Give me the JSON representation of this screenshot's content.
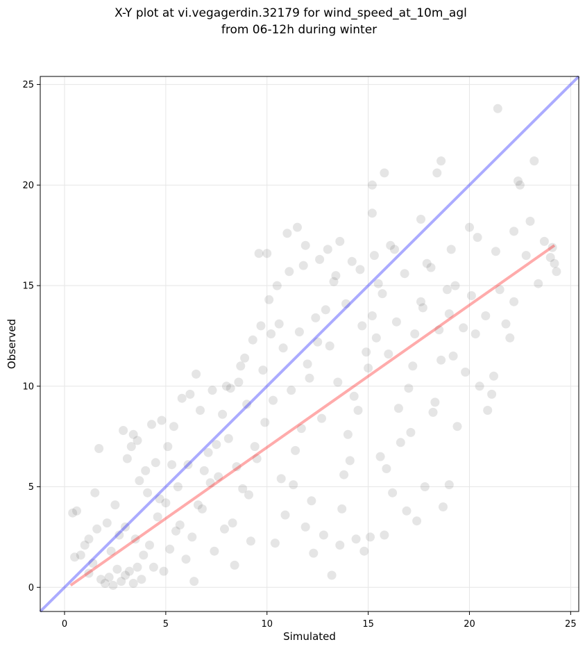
{
  "chart_data": {
    "type": "scatter",
    "title": "X-Y plot at vi.vegagerdin.32179 for wind_speed_at_10m_agl",
    "subtitle": "from 06-12h during winter",
    "xlabel": "Simulated",
    "ylabel": "Observed",
    "xlim": [
      -1.2,
      25.4
    ],
    "ylim": [
      -1.2,
      25.4
    ],
    "xticks": [
      0,
      5,
      10,
      15,
      20,
      25
    ],
    "yticks": [
      0,
      5,
      10,
      15,
      20,
      25
    ],
    "grid": true,
    "point_color": "#333333",
    "points": [
      [
        0.4,
        3.7
      ],
      [
        0.6,
        3.8
      ],
      [
        0.5,
        1.5
      ],
      [
        0.8,
        1.6
      ],
      [
        1.0,
        2.1
      ],
      [
        1.2,
        0.7
      ],
      [
        1.5,
        4.7
      ],
      [
        1.7,
        6.9
      ],
      [
        1.2,
        2.4
      ],
      [
        1.6,
        2.9
      ],
      [
        2.0,
        0.2
      ],
      [
        2.2,
        0.5
      ],
      [
        2.4,
        0.1
      ],
      [
        2.6,
        0.9
      ],
      [
        2.8,
        0.3
      ],
      [
        3.0,
        0.6
      ],
      [
        3.2,
        0.8
      ],
      [
        3.4,
        0.2
      ],
      [
        3.6,
        1.0
      ],
      [
        3.8,
        0.4
      ],
      [
        2.1,
        3.2
      ],
      [
        2.5,
        4.1
      ],
      [
        2.9,
        7.8
      ],
      [
        3.1,
        6.4
      ],
      [
        3.4,
        7.6
      ],
      [
        3.6,
        7.3
      ],
      [
        3.3,
        7.0
      ],
      [
        4.0,
        5.8
      ],
      [
        4.3,
        8.1
      ],
      [
        4.8,
        8.3
      ],
      [
        4.2,
        2.1
      ],
      [
        4.6,
        3.5
      ],
      [
        5.0,
        4.2
      ],
      [
        5.3,
        6.1
      ],
      [
        5.8,
        9.4
      ],
      [
        6.2,
        9.6
      ],
      [
        6.5,
        10.6
      ],
      [
        5.5,
        2.8
      ],
      [
        6.0,
        1.4
      ],
      [
        6.4,
        0.3
      ],
      [
        6.8,
        3.9
      ],
      [
        7.2,
        5.2
      ],
      [
        7.5,
        7.1
      ],
      [
        7.8,
        8.6
      ],
      [
        8.2,
        9.9
      ],
      [
        8.6,
        10.2
      ],
      [
        8.9,
        11.4
      ],
      [
        7.4,
        1.8
      ],
      [
        7.9,
        2.9
      ],
      [
        8.4,
        1.1
      ],
      [
        9.1,
        4.6
      ],
      [
        9.5,
        6.4
      ],
      [
        9.9,
        8.2
      ],
      [
        10.2,
        12.6
      ],
      [
        10.6,
        13.1
      ],
      [
        9.6,
        16.6
      ],
      [
        10.0,
        16.6
      ],
      [
        11.0,
        17.6
      ],
      [
        11.5,
        17.9
      ],
      [
        11.9,
        17.0
      ],
      [
        10.4,
        2.2
      ],
      [
        10.9,
        3.6
      ],
      [
        11.3,
        5.1
      ],
      [
        11.7,
        7.9
      ],
      [
        12.1,
        10.4
      ],
      [
        12.5,
        12.2
      ],
      [
        12.9,
        13.8
      ],
      [
        13.3,
        15.2
      ],
      [
        13.6,
        17.2
      ],
      [
        13.0,
        16.8
      ],
      [
        12.3,
        1.7
      ],
      [
        12.8,
        2.6
      ],
      [
        13.2,
        0.6
      ],
      [
        13.7,
        3.9
      ],
      [
        14.1,
        6.3
      ],
      [
        14.5,
        8.8
      ],
      [
        14.9,
        11.7
      ],
      [
        15.2,
        13.5
      ],
      [
        15.5,
        15.1
      ],
      [
        15.2,
        18.6
      ],
      [
        15.2,
        20.0
      ],
      [
        15.8,
        20.6
      ],
      [
        16.1,
        17.0
      ],
      [
        14.4,
        2.4
      ],
      [
        14.8,
        1.8
      ],
      [
        15.1,
        2.5
      ],
      [
        15.8,
        2.6
      ],
      [
        16.2,
        4.7
      ],
      [
        16.6,
        7.2
      ],
      [
        17.0,
        9.9
      ],
      [
        17.3,
        12.6
      ],
      [
        17.6,
        14.2
      ],
      [
        17.9,
        16.1
      ],
      [
        17.6,
        18.3
      ],
      [
        18.4,
        20.6
      ],
      [
        18.6,
        21.2
      ],
      [
        16.9,
        3.8
      ],
      [
        17.4,
        3.3
      ],
      [
        17.8,
        5.0
      ],
      [
        18.2,
        8.7
      ],
      [
        18.6,
        11.3
      ],
      [
        19.0,
        13.6
      ],
      [
        19.3,
        15.0
      ],
      [
        19.1,
        16.8
      ],
      [
        19.7,
        12.9
      ],
      [
        19.4,
        8.0
      ],
      [
        18.7,
        4.0
      ],
      [
        19.0,
        5.1
      ],
      [
        20.0,
        17.9
      ],
      [
        20.4,
        17.4
      ],
      [
        20.1,
        14.5
      ],
      [
        20.3,
        12.6
      ],
      [
        20.5,
        10.0
      ],
      [
        20.9,
        8.8
      ],
      [
        21.1,
        9.6
      ],
      [
        21.2,
        10.5
      ],
      [
        20.8,
        13.5
      ],
      [
        21.3,
        16.7
      ],
      [
        21.5,
        14.8
      ],
      [
        21.4,
        23.8
      ],
      [
        21.8,
        13.1
      ],
      [
        22.0,
        12.4
      ],
      [
        22.2,
        14.2
      ],
      [
        22.2,
        17.7
      ],
      [
        22.4,
        20.2
      ],
      [
        22.5,
        20.0
      ],
      [
        22.8,
        16.5
      ],
      [
        23.0,
        18.2
      ],
      [
        23.2,
        21.2
      ],
      [
        23.4,
        15.1
      ],
      [
        23.7,
        17.2
      ],
      [
        24.0,
        16.4
      ],
      [
        24.2,
        16.1
      ],
      [
        24.3,
        15.7
      ],
      [
        24.1,
        16.9
      ],
      [
        5.6,
        5.0
      ],
      [
        6.1,
        6.1
      ],
      [
        6.6,
        4.1
      ],
      [
        7.1,
        6.7
      ],
      [
        7.6,
        5.5
      ],
      [
        8.1,
        7.4
      ],
      [
        8.5,
        6.0
      ],
      [
        9.0,
        9.1
      ],
      [
        9.4,
        7.0
      ],
      [
        9.8,
        10.8
      ],
      [
        10.3,
        9.3
      ],
      [
        10.8,
        11.9
      ],
      [
        11.2,
        9.8
      ],
      [
        11.6,
        12.7
      ],
      [
        12.0,
        11.1
      ],
      [
        12.4,
        13.4
      ],
      [
        12.7,
        8.4
      ],
      [
        13.1,
        12.0
      ],
      [
        13.5,
        10.2
      ],
      [
        13.9,
        14.1
      ],
      [
        14.3,
        9.5
      ],
      [
        14.7,
        13.0
      ],
      [
        15.0,
        10.9
      ],
      [
        15.4,
        12.4
      ],
      [
        15.7,
        14.6
      ],
      [
        16.0,
        11.6
      ],
      [
        16.4,
        13.2
      ],
      [
        16.8,
        15.6
      ],
      [
        17.2,
        11.0
      ],
      [
        17.7,
        13.9
      ],
      [
        18.1,
        15.9
      ],
      [
        18.5,
        12.8
      ],
      [
        18.9,
        14.8
      ],
      [
        1.4,
        1.2
      ],
      [
        1.8,
        0.4
      ],
      [
        2.3,
        1.8
      ],
      [
        2.7,
        2.6
      ],
      [
        3.0,
        3.0
      ],
      [
        3.5,
        2.4
      ],
      [
        3.9,
        1.6
      ],
      [
        4.4,
        1.0
      ],
      [
        4.9,
        0.8
      ],
      [
        5.2,
        1.9
      ],
      [
        5.7,
        3.1
      ],
      [
        6.3,
        2.5
      ],
      [
        4.1,
        4.7
      ],
      [
        4.5,
        6.2
      ],
      [
        5.1,
        7.0
      ],
      [
        5.4,
        8.0
      ],
      [
        6.7,
        8.8
      ],
      [
        7.3,
        9.8
      ],
      [
        8.0,
        10.0
      ],
      [
        8.7,
        11.0
      ],
      [
        9.3,
        12.3
      ],
      [
        9.7,
        13.0
      ],
      [
        10.1,
        14.3
      ],
      [
        10.5,
        15.0
      ],
      [
        11.1,
        15.7
      ],
      [
        11.8,
        16.0
      ],
      [
        12.6,
        16.3
      ],
      [
        13.4,
        15.5
      ],
      [
        14.2,
        16.2
      ],
      [
        14.6,
        15.8
      ],
      [
        15.3,
        16.5
      ],
      [
        16.3,
        16.8
      ],
      [
        11.4,
        6.8
      ],
      [
        12.2,
        4.3
      ],
      [
        13.8,
        5.6
      ],
      [
        14.0,
        7.6
      ],
      [
        15.6,
        6.5
      ],
      [
        16.5,
        8.9
      ],
      [
        17.1,
        7.7
      ],
      [
        18.3,
        9.2
      ],
      [
        19.2,
        11.5
      ],
      [
        19.8,
        10.7
      ],
      [
        3.7,
        5.3
      ],
      [
        4.7,
        4.4
      ],
      [
        6.9,
        5.8
      ],
      [
        8.3,
        3.2
      ],
      [
        8.8,
        4.9
      ],
      [
        9.2,
        2.3
      ],
      [
        10.7,
        5.4
      ],
      [
        11.9,
        3.0
      ],
      [
        13.6,
        2.1
      ],
      [
        15.9,
        5.9
      ]
    ],
    "series": [
      {
        "name": "",
        "type": "line",
        "color": "#0000ff",
        "x": [
          -1.2,
          25.4
        ],
        "y": [
          -1.2,
          25.4
        ]
      },
      {
        "name": "",
        "type": "line",
        "color": "#ff0000",
        "x": [
          0.3,
          24.2
        ],
        "y": [
          0.1,
          17.0
        ]
      }
    ]
  }
}
